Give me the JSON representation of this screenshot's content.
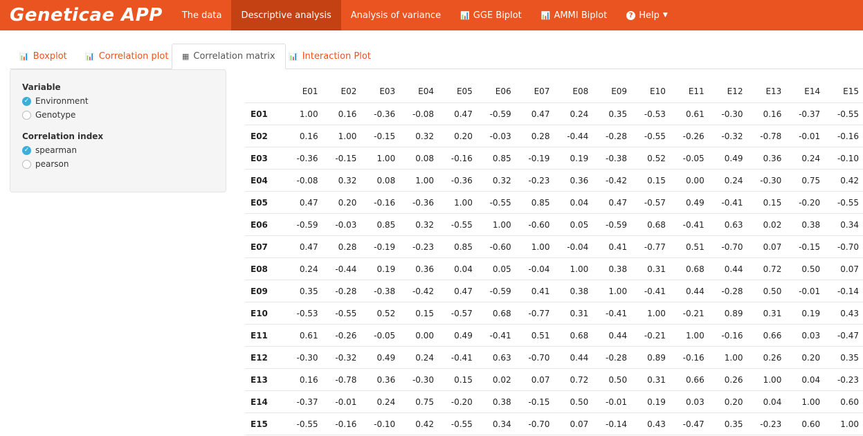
{
  "app": {
    "brand": "Geneticae APP"
  },
  "nav": [
    {
      "label": "The data",
      "icon": "",
      "active": false
    },
    {
      "label": "Descriptive analysis",
      "icon": "",
      "active": true
    },
    {
      "label": "Analysis of variance",
      "icon": "",
      "active": false
    },
    {
      "label": "GGE Biplot",
      "icon": "bar-chart-icon",
      "active": false
    },
    {
      "label": "AMMI Biplot",
      "icon": "bar-chart-icon",
      "active": false
    },
    {
      "label": "Help",
      "icon": "question-circle-icon",
      "active": false
    }
  ],
  "tabs": [
    {
      "label": "Boxplot",
      "icon": "bar-chart-icon",
      "active": false
    },
    {
      "label": "Correlation plot",
      "icon": "bar-chart-icon",
      "active": false
    },
    {
      "label": "Correlation matrix",
      "icon": "table-icon",
      "active": true
    },
    {
      "label": "Interaction Plot",
      "icon": "bar-chart-icon",
      "active": false
    }
  ],
  "sidebar": {
    "variable": {
      "label": "Variable",
      "options": [
        "Environment",
        "Genotype"
      ],
      "selected": "Environment"
    },
    "correlation_index": {
      "label": "Correlation index",
      "options": [
        "spearman",
        "pearson"
      ],
      "selected": "spearman"
    }
  },
  "colors": {
    "navbar": "#e95420",
    "navbar_active": "#c34113",
    "tab_text": "#e95420",
    "radio_checked": "#3bafda"
  },
  "matrix": {
    "headers": [
      "E01",
      "E02",
      "E03",
      "E04",
      "E05",
      "E06",
      "E07",
      "E08",
      "E09",
      "E10",
      "E11",
      "E12",
      "E13",
      "E14",
      "E15"
    ],
    "rows": [
      {
        "name": "E01",
        "values": [
          "1.00",
          "0.16",
          "-0.36",
          "-0.08",
          "0.47",
          "-0.59",
          "0.47",
          "0.24",
          "0.35",
          "-0.53",
          "0.61",
          "-0.30",
          "0.16",
          "-0.37",
          "-0.55"
        ]
      },
      {
        "name": "E02",
        "values": [
          "0.16",
          "1.00",
          "-0.15",
          "0.32",
          "0.20",
          "-0.03",
          "0.28",
          "-0.44",
          "-0.28",
          "-0.55",
          "-0.26",
          "-0.32",
          "-0.78",
          "-0.01",
          "-0.16"
        ]
      },
      {
        "name": "E03",
        "values": [
          "-0.36",
          "-0.15",
          "1.00",
          "0.08",
          "-0.16",
          "0.85",
          "-0.19",
          "0.19",
          "-0.38",
          "0.52",
          "-0.05",
          "0.49",
          "0.36",
          "0.24",
          "-0.10"
        ]
      },
      {
        "name": "E04",
        "values": [
          "-0.08",
          "0.32",
          "0.08",
          "1.00",
          "-0.36",
          "0.32",
          "-0.23",
          "0.36",
          "-0.42",
          "0.15",
          "0.00",
          "0.24",
          "-0.30",
          "0.75",
          "0.42"
        ]
      },
      {
        "name": "E05",
        "values": [
          "0.47",
          "0.20",
          "-0.16",
          "-0.36",
          "1.00",
          "-0.55",
          "0.85",
          "0.04",
          "0.47",
          "-0.57",
          "0.49",
          "-0.41",
          "0.15",
          "-0.20",
          "-0.55"
        ]
      },
      {
        "name": "E06",
        "values": [
          "-0.59",
          "-0.03",
          "0.85",
          "0.32",
          "-0.55",
          "1.00",
          "-0.60",
          "0.05",
          "-0.59",
          "0.68",
          "-0.41",
          "0.63",
          "0.02",
          "0.38",
          "0.34"
        ]
      },
      {
        "name": "E07",
        "values": [
          "0.47",
          "0.28",
          "-0.19",
          "-0.23",
          "0.85",
          "-0.60",
          "1.00",
          "-0.04",
          "0.41",
          "-0.77",
          "0.51",
          "-0.70",
          "0.07",
          "-0.15",
          "-0.70"
        ]
      },
      {
        "name": "E08",
        "values": [
          "0.24",
          "-0.44",
          "0.19",
          "0.36",
          "0.04",
          "0.05",
          "-0.04",
          "1.00",
          "0.38",
          "0.31",
          "0.68",
          "0.44",
          "0.72",
          "0.50",
          "0.07"
        ]
      },
      {
        "name": "E09",
        "values": [
          "0.35",
          "-0.28",
          "-0.38",
          "-0.42",
          "0.47",
          "-0.59",
          "0.41",
          "0.38",
          "1.00",
          "-0.41",
          "0.44",
          "-0.28",
          "0.50",
          "-0.01",
          "-0.14"
        ]
      },
      {
        "name": "E10",
        "values": [
          "-0.53",
          "-0.55",
          "0.52",
          "0.15",
          "-0.57",
          "0.68",
          "-0.77",
          "0.31",
          "-0.41",
          "1.00",
          "-0.21",
          "0.89",
          "0.31",
          "0.19",
          "0.43"
        ]
      },
      {
        "name": "E11",
        "values": [
          "0.61",
          "-0.26",
          "-0.05",
          "0.00",
          "0.49",
          "-0.41",
          "0.51",
          "0.68",
          "0.44",
          "-0.21",
          "1.00",
          "-0.16",
          "0.66",
          "0.03",
          "-0.47"
        ]
      },
      {
        "name": "E12",
        "values": [
          "-0.30",
          "-0.32",
          "0.49",
          "0.24",
          "-0.41",
          "0.63",
          "-0.70",
          "0.44",
          "-0.28",
          "0.89",
          "-0.16",
          "1.00",
          "0.26",
          "0.20",
          "0.35"
        ]
      },
      {
        "name": "E13",
        "values": [
          "0.16",
          "-0.78",
          "0.36",
          "-0.30",
          "0.15",
          "0.02",
          "0.07",
          "0.72",
          "0.50",
          "0.31",
          "0.66",
          "0.26",
          "1.00",
          "0.04",
          "-0.23"
        ]
      },
      {
        "name": "E14",
        "values": [
          "-0.37",
          "-0.01",
          "0.24",
          "0.75",
          "-0.20",
          "0.38",
          "-0.15",
          "0.50",
          "-0.01",
          "0.19",
          "0.03",
          "0.20",
          "0.04",
          "1.00",
          "0.60"
        ]
      },
      {
        "name": "E15",
        "values": [
          "-0.55",
          "-0.16",
          "-0.10",
          "0.42",
          "-0.55",
          "0.34",
          "-0.70",
          "0.07",
          "-0.14",
          "0.43",
          "-0.47",
          "0.35",
          "-0.23",
          "0.60",
          "1.00"
        ]
      }
    ]
  }
}
